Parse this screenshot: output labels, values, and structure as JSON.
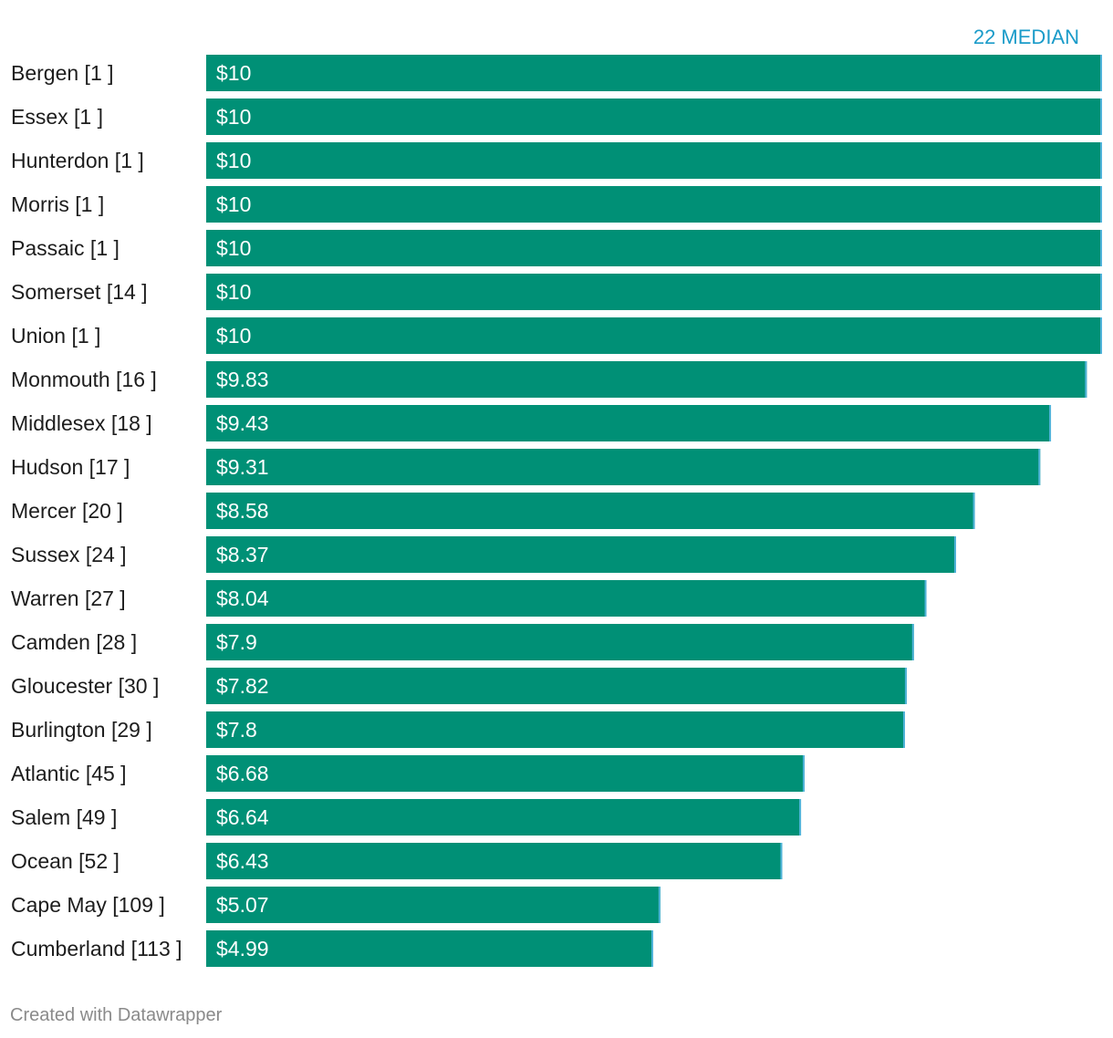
{
  "chart_data": {
    "type": "bar",
    "orientation": "horizontal",
    "categories": [
      "Bergen [1 ]",
      "Essex [1 ]",
      "Hunterdon [1 ]",
      "Morris [1 ]",
      "Passaic [1 ]",
      "Somerset [14 ]",
      "Union [1 ]",
      "Monmouth [16 ]",
      "Middlesex [18 ]",
      "Hudson [17 ]",
      "Mercer [20 ]",
      "Sussex [24 ]",
      "Warren [27 ]",
      "Camden [28 ]",
      "Gloucester [30 ]",
      "Burlington [29 ]",
      "Atlantic [45 ]",
      "Salem [49 ]",
      "Ocean [52 ]",
      "Cape May [109 ]",
      "Cumberland [113 ]"
    ],
    "values": [
      10,
      10,
      10,
      10,
      10,
      10,
      10,
      9.83,
      9.43,
      9.31,
      8.58,
      8.37,
      8.04,
      7.9,
      7.82,
      7.8,
      6.68,
      6.64,
      6.43,
      5.07,
      4.99
    ],
    "value_labels": [
      "$10",
      "$10",
      "$10",
      "$10",
      "$10",
      "$10",
      "$10",
      "$9.83",
      "$9.43",
      "$9.31",
      "$8.58",
      "$8.37",
      "$8.04",
      "$7.9",
      "$7.82",
      "$7.8",
      "$6.68",
      "$6.64",
      "$6.43",
      "$5.07",
      "$4.99"
    ],
    "xlim": [
      0,
      10
    ],
    "grid": false,
    "legend": "none",
    "annotation": "22 MEDIAN",
    "bar_color": "#009076",
    "edge_color": "#4fb3d9"
  },
  "footer": {
    "credit": "Created with Datawrapper"
  }
}
